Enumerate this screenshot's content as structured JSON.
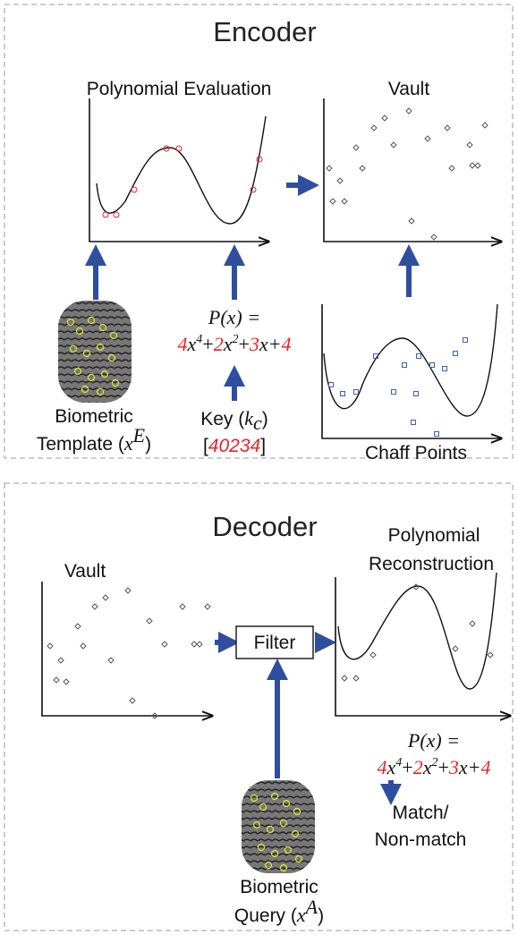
{
  "encoder": {
    "title": "Encoder",
    "eval_title": "Polynomial Evaluation",
    "vault_title": "Vault",
    "template": {
      "line1": "Biometric",
      "line2": [
        "Template (",
        "x",
        "E",
        ")"
      ]
    },
    "polynomial": {
      "lhs": "P(x) =",
      "terms": [
        "4",
        "x",
        "4",
        "+",
        "2",
        "x",
        "2",
        "+",
        "3",
        "x+",
        "4"
      ]
    },
    "key": {
      "line1": [
        "Key (",
        "k",
        "c",
        ")"
      ],
      "line2": [
        "[",
        "40234",
        "]"
      ]
    },
    "chaff_title": "Chaff Points"
  },
  "decoder": {
    "title": "Decoder",
    "vault_title": "Vault",
    "filter": "Filter",
    "recon_title": [
      "Polynomial",
      "Reconstruction"
    ],
    "polynomial": {
      "lhs": "P(x) =",
      "terms": [
        "4",
        "x",
        "4",
        "+",
        "2",
        "x",
        "2",
        "+",
        "3",
        "x+",
        "4"
      ]
    },
    "result": [
      "Match/",
      "Non-match"
    ],
    "query": {
      "line1": "Biometric",
      "line2": [
        "Query (",
        "x",
        "A",
        ")"
      ]
    }
  }
}
